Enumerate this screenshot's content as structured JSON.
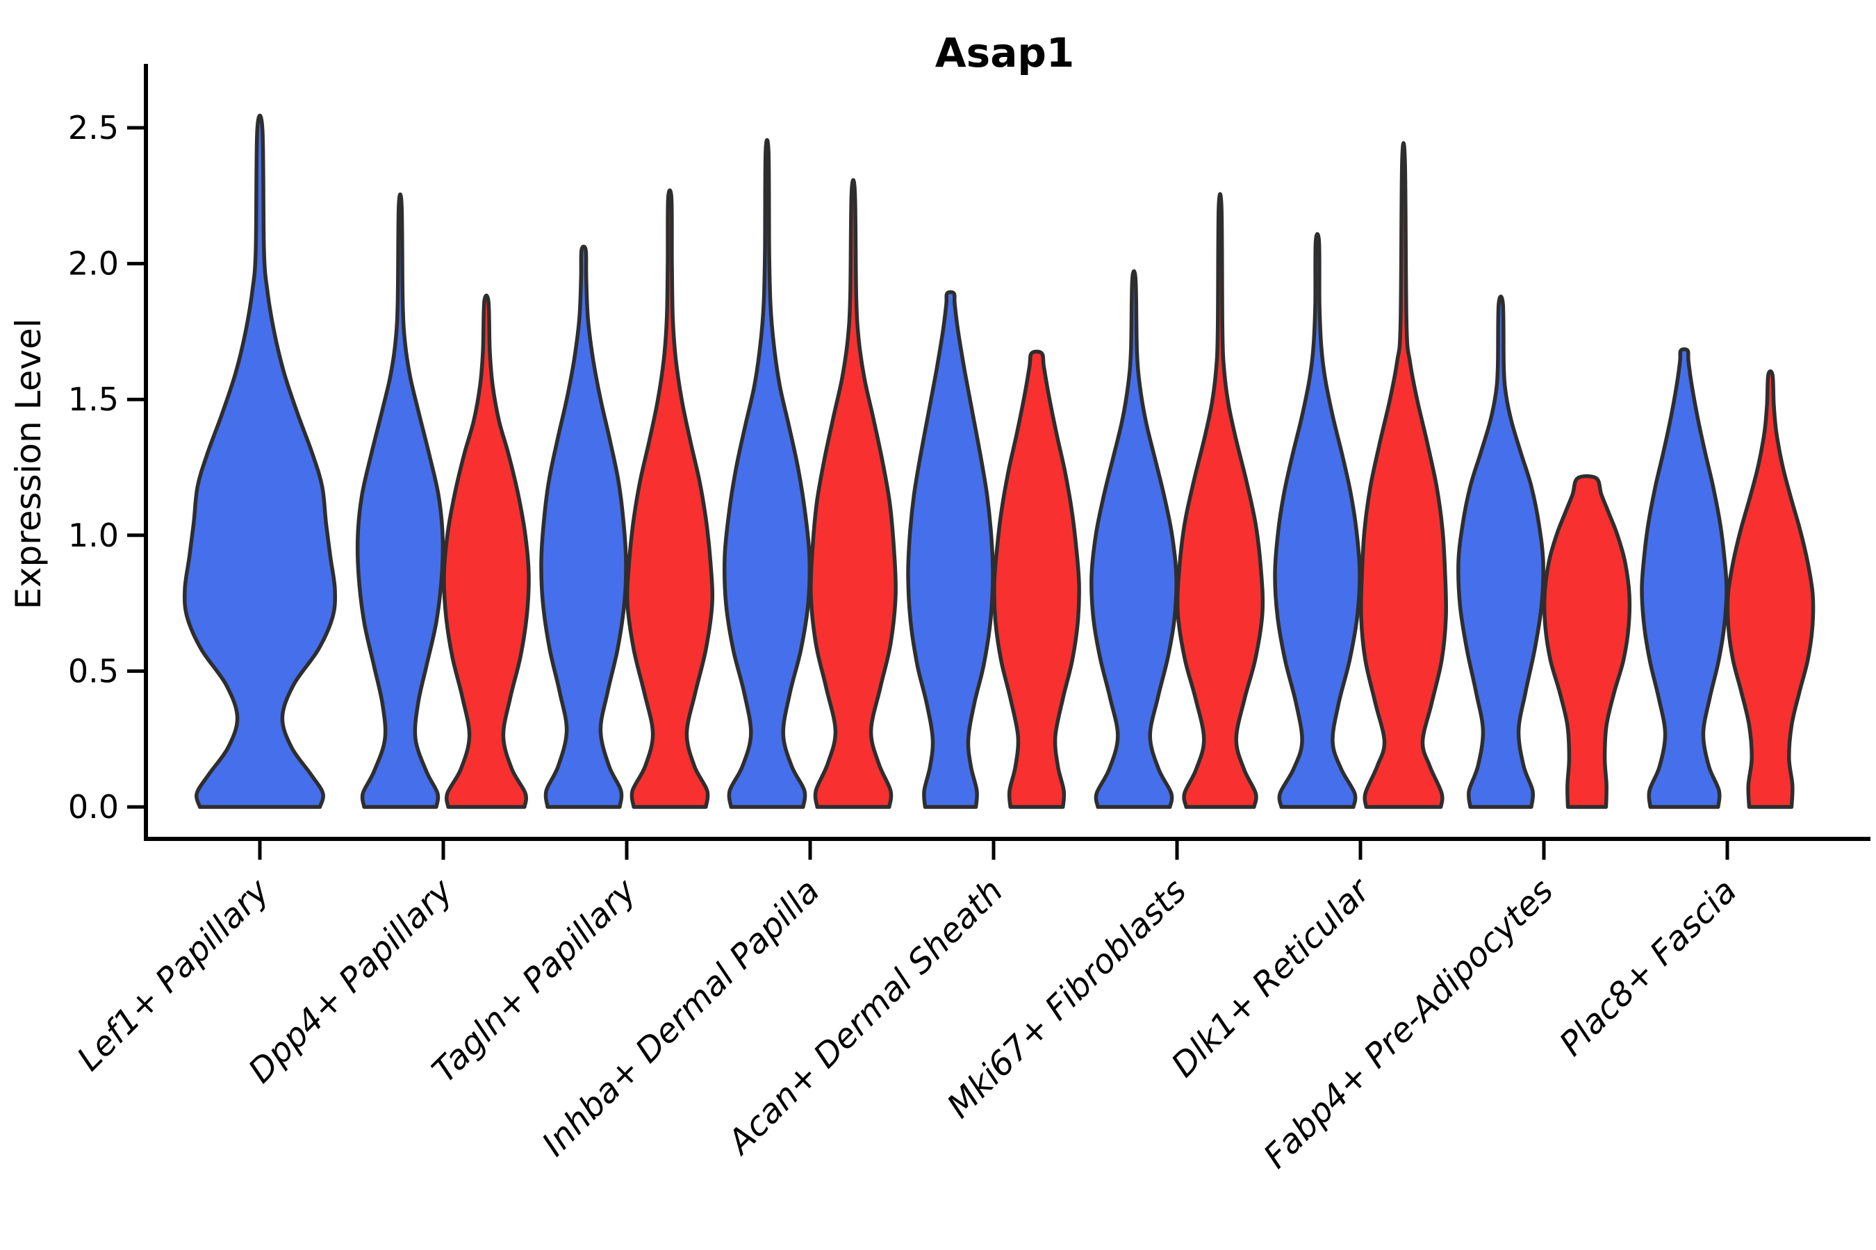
{
  "chart_data": {
    "type": "violin",
    "title": "Asap1",
    "ylabel": "Expression Level",
    "xlabel": "",
    "ylim": [
      0,
      2.6
    ],
    "yticks": [
      "0.0",
      "0.5",
      "1.0",
      "1.5",
      "2.0",
      "2.5"
    ],
    "grid": false,
    "legend_position": "none",
    "x_tick_rotation": 45,
    "outline_color": "#2E2E2E",
    "background_color": "#FFFFFF",
    "series": [
      {
        "name": "blue",
        "color": "#466FEB"
      },
      {
        "name": "red",
        "color": "#F93030"
      }
    ],
    "categories": [
      "Lef1+ Papillary",
      "Dpp4+ Papillary",
      "Tagln+ Papillary",
      "Inhba+ Dermal Papilla",
      "Acan+ Dermal Sheath",
      "Mki67+ Fibroblasts",
      "Dlk1+ Reticular",
      "Fabp4+ Pre-Adipocytes",
      "Plac8+ Fascia"
    ],
    "violins": [
      {
        "category": "Lef1+ Papillary",
        "series": "blue",
        "max_expression": 2.49,
        "profile": [
          [
            0,
            0.8
          ],
          [
            0.05,
            0.84
          ],
          [
            0.12,
            0.68
          ],
          [
            0.22,
            0.42
          ],
          [
            0.33,
            0.3
          ],
          [
            0.45,
            0.45
          ],
          [
            0.58,
            0.78
          ],
          [
            0.7,
            0.97
          ],
          [
            0.8,
            1.0
          ],
          [
            0.92,
            0.94
          ],
          [
            1.05,
            0.88
          ],
          [
            1.18,
            0.83
          ],
          [
            1.3,
            0.7
          ],
          [
            1.45,
            0.5
          ],
          [
            1.6,
            0.32
          ],
          [
            1.75,
            0.19
          ],
          [
            1.9,
            0.1
          ],
          [
            2.05,
            0.055
          ],
          [
            2.49,
            0.035
          ]
        ]
      },
      {
        "category": "Dpp4+ Papillary",
        "series": "blue",
        "max_expression": 2.21,
        "profile": [
          [
            0,
            0.85
          ],
          [
            0.05,
            0.88
          ],
          [
            0.13,
            0.62
          ],
          [
            0.25,
            0.36
          ],
          [
            0.38,
            0.42
          ],
          [
            0.52,
            0.62
          ],
          [
            0.68,
            0.85
          ],
          [
            0.85,
            0.98
          ],
          [
            1.0,
            1.0
          ],
          [
            1.15,
            0.9
          ],
          [
            1.3,
            0.68
          ],
          [
            1.45,
            0.44
          ],
          [
            1.58,
            0.24
          ],
          [
            1.7,
            0.12
          ],
          [
            1.85,
            0.06
          ],
          [
            2.21,
            0.035
          ]
        ]
      },
      {
        "category": "Dpp4+ Papillary",
        "series": "red",
        "max_expression": 1.86,
        "profile": [
          [
            0,
            0.9
          ],
          [
            0.05,
            0.92
          ],
          [
            0.14,
            0.6
          ],
          [
            0.26,
            0.4
          ],
          [
            0.4,
            0.56
          ],
          [
            0.55,
            0.8
          ],
          [
            0.7,
            0.95
          ],
          [
            0.85,
            1.0
          ],
          [
            1.0,
            0.92
          ],
          [
            1.15,
            0.75
          ],
          [
            1.3,
            0.52
          ],
          [
            1.42,
            0.3
          ],
          [
            1.55,
            0.15
          ],
          [
            1.68,
            0.08
          ],
          [
            1.86,
            0.05
          ]
        ]
      },
      {
        "category": "Tagln+ Papillary",
        "series": "blue",
        "max_expression": 2.05,
        "profile": [
          [
            0,
            0.85
          ],
          [
            0.06,
            0.88
          ],
          [
            0.15,
            0.6
          ],
          [
            0.28,
            0.4
          ],
          [
            0.42,
            0.56
          ],
          [
            0.58,
            0.8
          ],
          [
            0.75,
            0.96
          ],
          [
            0.9,
            1.0
          ],
          [
            1.05,
            0.94
          ],
          [
            1.2,
            0.82
          ],
          [
            1.35,
            0.62
          ],
          [
            1.5,
            0.4
          ],
          [
            1.65,
            0.22
          ],
          [
            1.8,
            0.1
          ],
          [
            1.95,
            0.06
          ],
          [
            2.05,
            0.05
          ]
        ]
      },
      {
        "category": "Tagln+ Papillary",
        "series": "red",
        "max_expression": 2.24,
        "profile": [
          [
            0,
            0.85
          ],
          [
            0.06,
            0.88
          ],
          [
            0.15,
            0.58
          ],
          [
            0.27,
            0.4
          ],
          [
            0.42,
            0.6
          ],
          [
            0.58,
            0.85
          ],
          [
            0.75,
            1.0
          ],
          [
            0.9,
            0.96
          ],
          [
            1.05,
            0.86
          ],
          [
            1.2,
            0.7
          ],
          [
            1.35,
            0.48
          ],
          [
            1.5,
            0.28
          ],
          [
            1.65,
            0.14
          ],
          [
            1.8,
            0.07
          ],
          [
            2.0,
            0.05
          ],
          [
            2.24,
            0.04
          ]
        ]
      },
      {
        "category": "Inhba+ Dermal Papilla",
        "series": "blue",
        "max_expression": 2.41,
        "profile": [
          [
            0,
            0.85
          ],
          [
            0.06,
            0.88
          ],
          [
            0.15,
            0.58
          ],
          [
            0.27,
            0.38
          ],
          [
            0.42,
            0.54
          ],
          [
            0.58,
            0.8
          ],
          [
            0.75,
            0.97
          ],
          [
            0.92,
            1.0
          ],
          [
            1.08,
            0.9
          ],
          [
            1.24,
            0.74
          ],
          [
            1.4,
            0.52
          ],
          [
            1.55,
            0.3
          ],
          [
            1.7,
            0.16
          ],
          [
            1.85,
            0.08
          ],
          [
            2.05,
            0.05
          ],
          [
            2.41,
            0.035
          ]
        ]
      },
      {
        "category": "Inhba+ Dermal Papilla",
        "series": "red",
        "max_expression": 2.26,
        "profile": [
          [
            0,
            0.85
          ],
          [
            0.06,
            0.88
          ],
          [
            0.16,
            0.6
          ],
          [
            0.28,
            0.42
          ],
          [
            0.44,
            0.64
          ],
          [
            0.6,
            0.88
          ],
          [
            0.78,
            1.0
          ],
          [
            0.95,
            0.96
          ],
          [
            1.12,
            0.86
          ],
          [
            1.28,
            0.68
          ],
          [
            1.44,
            0.46
          ],
          [
            1.58,
            0.26
          ],
          [
            1.72,
            0.13
          ],
          [
            1.88,
            0.07
          ],
          [
            2.26,
            0.04
          ]
        ]
      },
      {
        "category": "Acan+ Dermal Sheath",
        "series": "blue",
        "max_expression": 1.89,
        "profile": [
          [
            0,
            0.6
          ],
          [
            0.06,
            0.62
          ],
          [
            0.15,
            0.48
          ],
          [
            0.25,
            0.42
          ],
          [
            0.38,
            0.56
          ],
          [
            0.52,
            0.78
          ],
          [
            0.68,
            0.94
          ],
          [
            0.85,
            1.0
          ],
          [
            1.0,
            0.96
          ],
          [
            1.15,
            0.86
          ],
          [
            1.3,
            0.7
          ],
          [
            1.45,
            0.52
          ],
          [
            1.6,
            0.34
          ],
          [
            1.75,
            0.18
          ],
          [
            1.85,
            0.1
          ],
          [
            1.89,
            0.08
          ]
        ]
      },
      {
        "category": "Acan+ Dermal Sheath",
        "series": "red",
        "max_expression": 1.67,
        "profile": [
          [
            0,
            0.62
          ],
          [
            0.06,
            0.64
          ],
          [
            0.15,
            0.5
          ],
          [
            0.26,
            0.44
          ],
          [
            0.4,
            0.62
          ],
          [
            0.54,
            0.84
          ],
          [
            0.68,
            0.97
          ],
          [
            0.82,
            1.0
          ],
          [
            0.96,
            0.93
          ],
          [
            1.1,
            0.82
          ],
          [
            1.24,
            0.66
          ],
          [
            1.38,
            0.46
          ],
          [
            1.52,
            0.28
          ],
          [
            1.62,
            0.17
          ],
          [
            1.67,
            0.12
          ]
        ]
      },
      {
        "category": "Mki67+ Fibroblasts",
        "series": "blue",
        "max_expression": 1.94,
        "profile": [
          [
            0,
            0.85
          ],
          [
            0.05,
            0.88
          ],
          [
            0.14,
            0.58
          ],
          [
            0.26,
            0.38
          ],
          [
            0.4,
            0.56
          ],
          [
            0.55,
            0.8
          ],
          [
            0.7,
            0.96
          ],
          [
            0.85,
            1.0
          ],
          [
            1.0,
            0.9
          ],
          [
            1.14,
            0.72
          ],
          [
            1.28,
            0.5
          ],
          [
            1.42,
            0.28
          ],
          [
            1.55,
            0.14
          ],
          [
            1.68,
            0.07
          ],
          [
            1.94,
            0.04
          ]
        ]
      },
      {
        "category": "Mki67+ Fibroblasts",
        "series": "red",
        "max_expression": 2.2,
        "profile": [
          [
            0,
            0.8
          ],
          [
            0.05,
            0.84
          ],
          [
            0.14,
            0.56
          ],
          [
            0.25,
            0.38
          ],
          [
            0.4,
            0.58
          ],
          [
            0.55,
            0.84
          ],
          [
            0.72,
            1.0
          ],
          [
            0.88,
            0.96
          ],
          [
            1.04,
            0.84
          ],
          [
            1.2,
            0.62
          ],
          [
            1.35,
            0.38
          ],
          [
            1.48,
            0.2
          ],
          [
            1.6,
            0.1
          ],
          [
            1.75,
            0.055
          ],
          [
            2.2,
            0.035
          ]
        ]
      },
      {
        "category": "Dlk1+ Reticular",
        "series": "blue",
        "max_expression": 2.08,
        "profile": [
          [
            0,
            0.85
          ],
          [
            0.05,
            0.88
          ],
          [
            0.14,
            0.56
          ],
          [
            0.24,
            0.36
          ],
          [
            0.38,
            0.5
          ],
          [
            0.54,
            0.76
          ],
          [
            0.7,
            0.94
          ],
          [
            0.86,
            1.0
          ],
          [
            1.02,
            0.92
          ],
          [
            1.16,
            0.78
          ],
          [
            1.3,
            0.58
          ],
          [
            1.44,
            0.36
          ],
          [
            1.58,
            0.18
          ],
          [
            1.7,
            0.09
          ],
          [
            1.85,
            0.05
          ],
          [
            2.08,
            0.04
          ]
        ]
      },
      {
        "category": "Dlk1+ Reticular",
        "series": "red",
        "max_expression": 2.37,
        "profile": [
          [
            0,
            0.88
          ],
          [
            0.05,
            0.9
          ],
          [
            0.15,
            0.62
          ],
          [
            0.24,
            0.45
          ],
          [
            0.38,
            0.66
          ],
          [
            0.54,
            0.9
          ],
          [
            0.7,
            1.0
          ],
          [
            0.86,
            0.98
          ],
          [
            1.02,
            0.92
          ],
          [
            1.18,
            0.78
          ],
          [
            1.34,
            0.56
          ],
          [
            1.5,
            0.32
          ],
          [
            1.64,
            0.15
          ],
          [
            1.78,
            0.07
          ],
          [
            2.37,
            0.035
          ]
        ]
      },
      {
        "category": "Fabp4+ Pre-Adipocytes",
        "series": "blue",
        "max_expression": 1.85,
        "profile": [
          [
            0,
            0.72
          ],
          [
            0.06,
            0.75
          ],
          [
            0.15,
            0.54
          ],
          [
            0.28,
            0.42
          ],
          [
            0.42,
            0.58
          ],
          [
            0.58,
            0.8
          ],
          [
            0.74,
            0.96
          ],
          [
            0.9,
            1.0
          ],
          [
            1.04,
            0.9
          ],
          [
            1.18,
            0.72
          ],
          [
            1.3,
            0.48
          ],
          [
            1.42,
            0.25
          ],
          [
            1.52,
            0.12
          ],
          [
            1.62,
            0.07
          ],
          [
            1.85,
            0.05
          ]
        ]
      },
      {
        "category": "Fabp4+ Pre-Adipocytes",
        "series": "red",
        "max_expression": 1.21,
        "profile": [
          [
            0,
            0.45
          ],
          [
            0.08,
            0.46
          ],
          [
            0.18,
            0.42
          ],
          [
            0.3,
            0.46
          ],
          [
            0.42,
            0.64
          ],
          [
            0.54,
            0.86
          ],
          [
            0.66,
            0.98
          ],
          [
            0.78,
            1.0
          ],
          [
            0.9,
            0.9
          ],
          [
            1.0,
            0.72
          ],
          [
            1.08,
            0.52
          ],
          [
            1.15,
            0.34
          ],
          [
            1.21,
            0.22
          ]
        ]
      },
      {
        "category": "Plac8+ Fascia",
        "series": "blue",
        "max_expression": 1.68,
        "profile": [
          [
            0,
            0.8
          ],
          [
            0.06,
            0.82
          ],
          [
            0.15,
            0.58
          ],
          [
            0.27,
            0.45
          ],
          [
            0.4,
            0.6
          ],
          [
            0.53,
            0.8
          ],
          [
            0.66,
            0.94
          ],
          [
            0.8,
            1.0
          ],
          [
            0.93,
            0.94
          ],
          [
            1.05,
            0.84
          ],
          [
            1.18,
            0.68
          ],
          [
            1.3,
            0.5
          ],
          [
            1.43,
            0.32
          ],
          [
            1.55,
            0.18
          ],
          [
            1.64,
            0.1
          ],
          [
            1.68,
            0.08
          ]
        ]
      },
      {
        "category": "Plac8+ Fascia",
        "series": "red",
        "max_expression": 1.59,
        "profile": [
          [
            0,
            0.5
          ],
          [
            0.08,
            0.52
          ],
          [
            0.18,
            0.44
          ],
          [
            0.3,
            0.5
          ],
          [
            0.42,
            0.68
          ],
          [
            0.54,
            0.88
          ],
          [
            0.66,
            0.99
          ],
          [
            0.78,
            1.0
          ],
          [
            0.9,
            0.88
          ],
          [
            1.02,
            0.7
          ],
          [
            1.14,
            0.48
          ],
          [
            1.26,
            0.28
          ],
          [
            1.38,
            0.14
          ],
          [
            1.48,
            0.08
          ],
          [
            1.59,
            0.05
          ]
        ]
      }
    ]
  }
}
